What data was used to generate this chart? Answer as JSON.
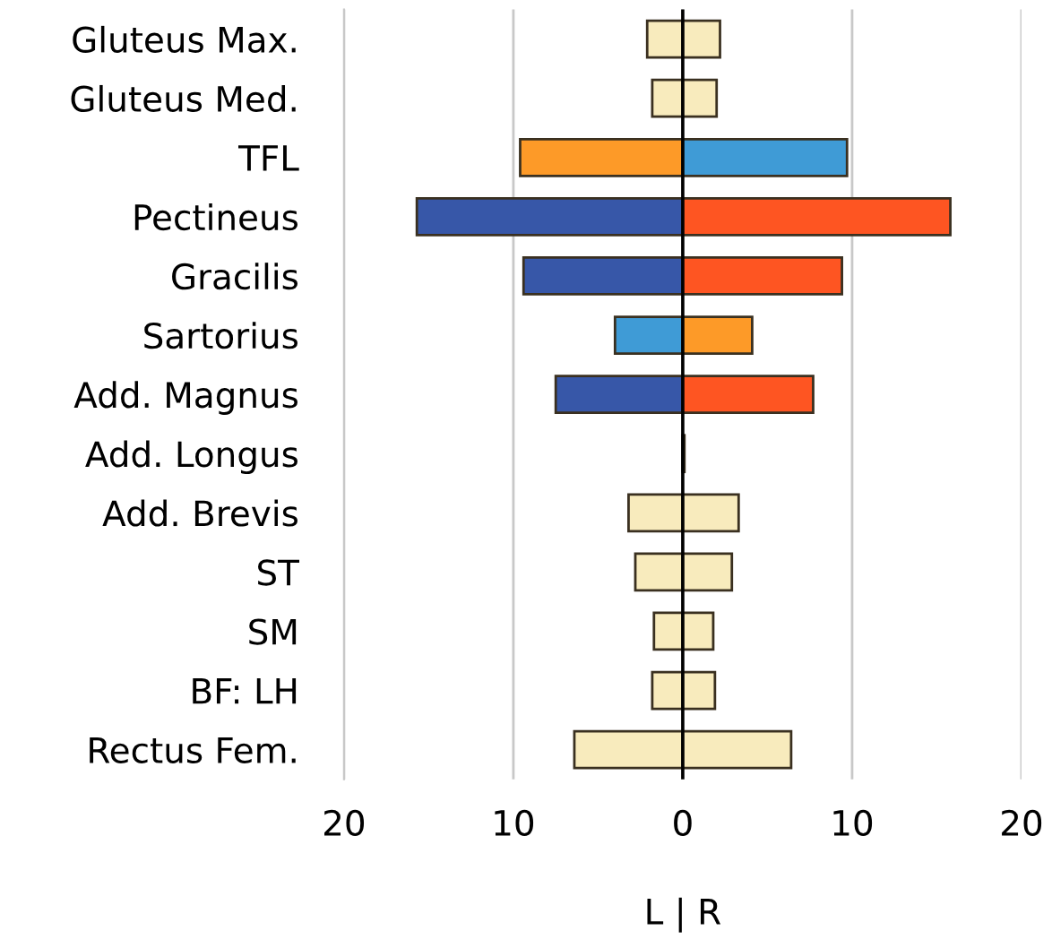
{
  "chart_data": {
    "type": "bar",
    "orientation": "horizontal",
    "stacked": true,
    "xlabel": "L | R",
    "categories": [
      "Gluteus Max.",
      "Gluteus Med.",
      "TFL",
      "Pectineus",
      "Gracilis",
      "Sartorius",
      "Add. Magnus",
      "Add. Longus",
      "Add. Brevis",
      "ST",
      "SM",
      "BF: LH",
      "Rectus Fem."
    ],
    "series": [
      {
        "values": [
          -2.1,
          -1.8,
          -9.6,
          -15.7,
          -9.4,
          -4.0,
          -7.5,
          0,
          -3.2,
          -2.8,
          -1.7,
          -1.8,
          -6.4
        ],
        "colors": [
          "#f8ebbd",
          "#f8ebbd",
          "#fd9a28",
          "#3757a8",
          "#3757a8",
          "#3f9bd6",
          "#3757a8",
          "#f8ebbd",
          "#f8ebbd",
          "#f8ebbd",
          "#f8ebbd",
          "#f8ebbd",
          "#f8ebbd"
        ]
      },
      {
        "values": [
          2.2,
          2.0,
          9.7,
          15.8,
          9.4,
          4.1,
          7.7,
          0.1,
          3.3,
          2.9,
          1.8,
          1.9,
          6.4
        ],
        "colors": [
          "#f8ebbd",
          "#f8ebbd",
          "#3f9bd6",
          "#fe5522",
          "#fe5522",
          "#fd9a28",
          "#fe5522",
          "#f8ebbd",
          "#f8ebbd",
          "#f8ebbd",
          "#f8ebbd",
          "#f8ebbd",
          "#f8ebbd"
        ]
      }
    ],
    "xlim": [
      -20,
      20
    ],
    "xticks": [
      {
        "value": -20,
        "label": "20"
      },
      {
        "value": -10,
        "label": "10"
      },
      0,
      10,
      20
    ],
    "ref_lines": [
      {
        "axis": "x",
        "value": 0,
        "color": "#000000"
      }
    ],
    "grid": "x",
    "legend": false
  }
}
